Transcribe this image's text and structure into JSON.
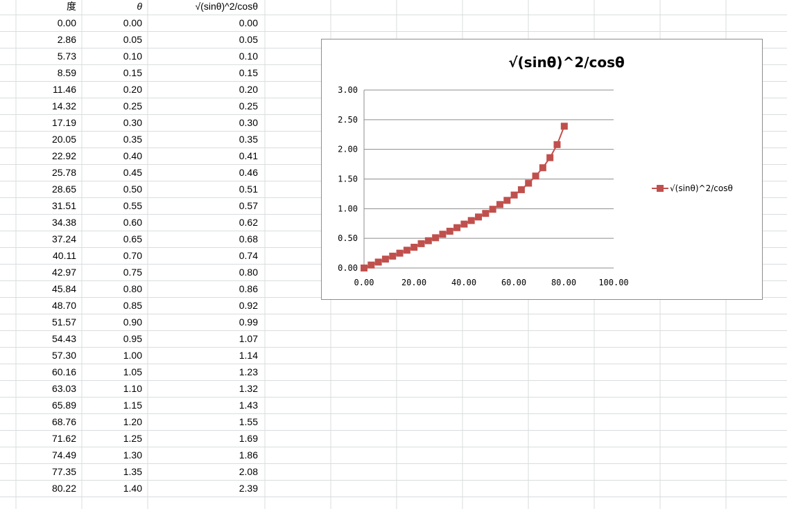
{
  "sheet": {
    "headers": [
      "度",
      "θ",
      "√(sinθ)^2/cosθ"
    ],
    "rows": [
      [
        "0.00",
        "0.00",
        "0.00"
      ],
      [
        "2.86",
        "0.05",
        "0.05"
      ],
      [
        "5.73",
        "0.10",
        "0.10"
      ],
      [
        "8.59",
        "0.15",
        "0.15"
      ],
      [
        "11.46",
        "0.20",
        "0.20"
      ],
      [
        "14.32",
        "0.25",
        "0.25"
      ],
      [
        "17.19",
        "0.30",
        "0.30"
      ],
      [
        "20.05",
        "0.35",
        "0.35"
      ],
      [
        "22.92",
        "0.40",
        "0.41"
      ],
      [
        "25.78",
        "0.45",
        "0.46"
      ],
      [
        "28.65",
        "0.50",
        "0.51"
      ],
      [
        "31.51",
        "0.55",
        "0.57"
      ],
      [
        "34.38",
        "0.60",
        "0.62"
      ],
      [
        "37.24",
        "0.65",
        "0.68"
      ],
      [
        "40.11",
        "0.70",
        "0.74"
      ],
      [
        "42.97",
        "0.75",
        "0.80"
      ],
      [
        "45.84",
        "0.80",
        "0.86"
      ],
      [
        "48.70",
        "0.85",
        "0.92"
      ],
      [
        "51.57",
        "0.90",
        "0.99"
      ],
      [
        "54.43",
        "0.95",
        "1.07"
      ],
      [
        "57.30",
        "1.00",
        "1.14"
      ],
      [
        "60.16",
        "1.05",
        "1.23"
      ],
      [
        "63.03",
        "1.10",
        "1.32"
      ],
      [
        "65.89",
        "1.15",
        "1.43"
      ],
      [
        "68.76",
        "1.20",
        "1.55"
      ],
      [
        "71.62",
        "1.25",
        "1.69"
      ],
      [
        "74.49",
        "1.30",
        "1.86"
      ],
      [
        "77.35",
        "1.35",
        "2.08"
      ],
      [
        "80.22",
        "1.40",
        "2.39"
      ]
    ]
  },
  "chart_data": {
    "type": "line",
    "title": "√(sinθ)^2/cosθ",
    "xlabel": "",
    "ylabel": "",
    "xlim": [
      0,
      100
    ],
    "ylim": [
      0,
      3
    ],
    "xticks": [
      "0.00",
      "20.00",
      "40.00",
      "60.00",
      "80.00",
      "100.00"
    ],
    "yticks": [
      "0.00",
      "0.50",
      "1.00",
      "1.50",
      "2.00",
      "2.50",
      "3.00"
    ],
    "grid": "horizontal",
    "legend_position": "right",
    "series": [
      {
        "name": "√(sinθ)^2/cosθ",
        "color": "#C0504D",
        "marker": "square",
        "x": [
          0.0,
          2.86,
          5.73,
          8.59,
          11.46,
          14.32,
          17.19,
          20.05,
          22.92,
          25.78,
          28.65,
          31.51,
          34.38,
          37.24,
          40.11,
          42.97,
          45.84,
          48.7,
          51.57,
          54.43,
          57.3,
          60.16,
          63.03,
          65.89,
          68.76,
          71.62,
          74.49,
          77.35,
          80.22
        ],
        "y": [
          0.0,
          0.05,
          0.1,
          0.15,
          0.2,
          0.25,
          0.3,
          0.35,
          0.41,
          0.46,
          0.51,
          0.57,
          0.62,
          0.68,
          0.74,
          0.8,
          0.86,
          0.92,
          0.99,
          1.07,
          1.14,
          1.23,
          1.32,
          1.43,
          1.55,
          1.69,
          1.86,
          2.08,
          2.39
        ]
      }
    ]
  }
}
